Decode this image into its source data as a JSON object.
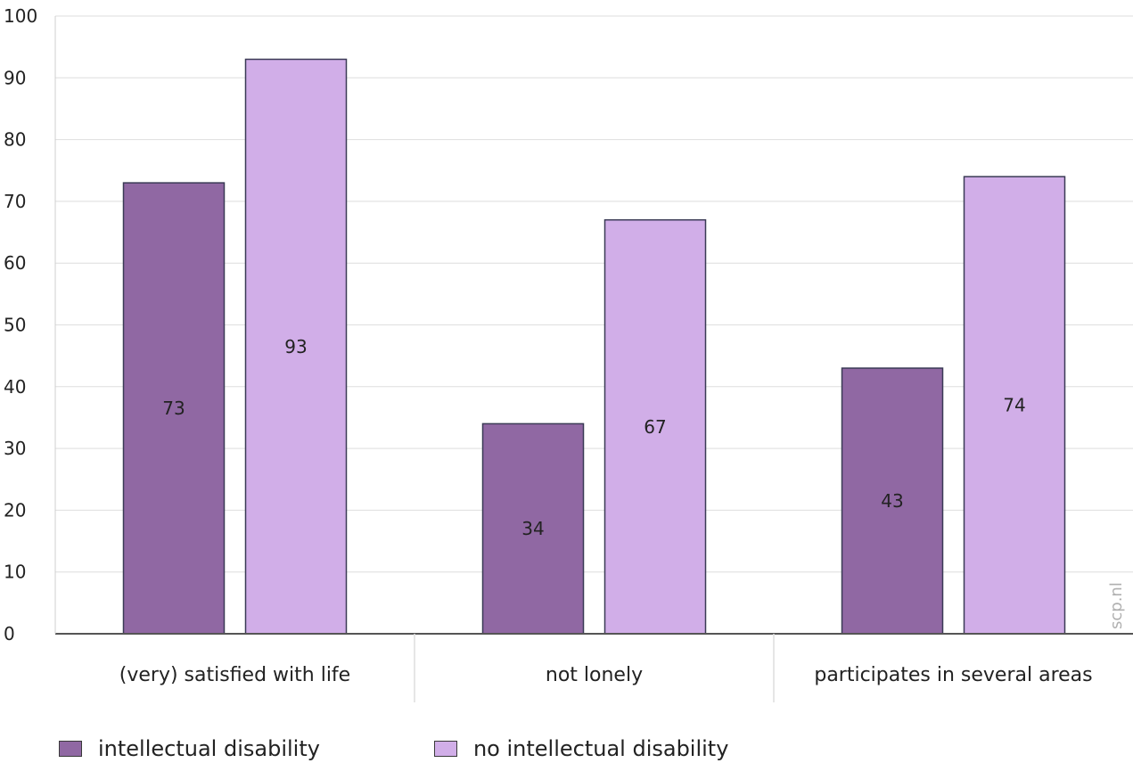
{
  "chart_data": {
    "type": "bar",
    "categories": [
      "(very) satisfied with life",
      "not lonely",
      "participates in several areas"
    ],
    "series": [
      {
        "name": "intellectual disability",
        "values": [
          73,
          34,
          43
        ],
        "color": "#9068a3"
      },
      {
        "name": "no intellectual disability",
        "values": [
          93,
          67,
          74
        ],
        "color": "#d1aee8"
      }
    ],
    "ylim": [
      0,
      100
    ],
    "yticks": [
      "0",
      "10",
      "20",
      "30",
      "40",
      "50",
      "60",
      "70",
      "80",
      "90",
      "100"
    ],
    "grid": true,
    "legend": "bottom-left",
    "watermark": "scp.nl"
  }
}
